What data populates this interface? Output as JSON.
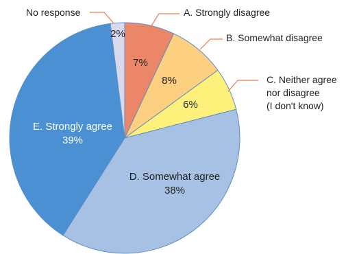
{
  "chart_data": {
    "type": "pie",
    "title": "",
    "start_angle_deg": 0,
    "direction": "clockwise",
    "slices": [
      {
        "label": "A. Strongly disagree",
        "value": 7,
        "display": "7%",
        "color": "#ec8669"
      },
      {
        "label": "B. Somewhat disagree",
        "value": 8,
        "display": "8%",
        "color": "#fdd081"
      },
      {
        "label": "C. Neither agree nor disagree (I don't know)",
        "label_lines": [
          "C. Neither agree",
          "nor disagree",
          "(I don't know)"
        ],
        "value": 6,
        "display": "6%",
        "color": "#fdf17c"
      },
      {
        "label": "D. Somewhat agree",
        "value": 38,
        "display": "38%",
        "color": "#a7c1e4"
      },
      {
        "label": "E. Strongly agree",
        "value": 39,
        "display": "39%",
        "color": "#4a90d3"
      },
      {
        "label": "No response",
        "value": 2,
        "display": "2%",
        "color": "#d9d9ee"
      }
    ],
    "edge_color": "#5b8ec4",
    "leader_color": "#ec7d50"
  }
}
